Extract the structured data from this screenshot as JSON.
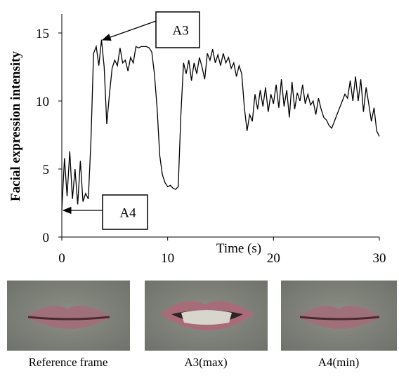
{
  "chart_data": {
    "type": "line",
    "xlabel": "Time (s)",
    "ylabel": "Facial expression intensity",
    "x": [
      0,
      0.25,
      0.5,
      0.75,
      1,
      1.25,
      1.5,
      1.75,
      2,
      2.25,
      2.5,
      2.75,
      3,
      3.25,
      3.5,
      3.75,
      4,
      4.25,
      4.5,
      4.75,
      5,
      5.25,
      5.5,
      5.75,
      6,
      6.25,
      6.5,
      6.75,
      7,
      7.25,
      7.5,
      7.75,
      8,
      8.25,
      8.5,
      8.75,
      9,
      9.25,
      9.5,
      9.75,
      10,
      10.25,
      10.5,
      10.75,
      11,
      11.25,
      11.5,
      11.75,
      12,
      12.25,
      12.5,
      12.75,
      13,
      13.25,
      13.5,
      13.75,
      14,
      14.25,
      14.5,
      14.75,
      15,
      15.25,
      15.5,
      15.75,
      16,
      16.25,
      16.5,
      16.75,
      17,
      17.25,
      17.5,
      17.75,
      18,
      18.25,
      18.5,
      18.75,
      19,
      19.25,
      19.5,
      19.75,
      20,
      20.25,
      20.5,
      20.75,
      21,
      21.25,
      21.5,
      21.75,
      22,
      22.25,
      22.5,
      22.75,
      23,
      23.25,
      23.5,
      23.75,
      24,
      24.25,
      24.5,
      24.75,
      25,
      25.25,
      25.5,
      25.75,
      26,
      26.25,
      26.5,
      26.75,
      27,
      27.25,
      27.5,
      27.75,
      28,
      28.25,
      28.5,
      28.75,
      29,
      29.25,
      29.5,
      29.75,
      30
    ],
    "series": [
      {
        "color": "#000000",
        "values": [
          2.0,
          5.8,
          3.0,
          6.3,
          2.8,
          5.0,
          2.4,
          5.6,
          2.6,
          3.2,
          2.8,
          7.0,
          13.5,
          14.0,
          12.6,
          14.5,
          12.5,
          8.3,
          10.5,
          12.4,
          13.0,
          12.6,
          13.9,
          12.8,
          13.0,
          12.2,
          13.2,
          12.8,
          14.0,
          13.9,
          14.0,
          14.0,
          14.0,
          13.9,
          13.6,
          12.0,
          9.5,
          6.0,
          4.6,
          4.0,
          3.7,
          3.8,
          3.6,
          3.5,
          3.7,
          9.0,
          12.8,
          12.0,
          13.0,
          11.5,
          12.8,
          12.0,
          13.2,
          12.5,
          11.6,
          13.5,
          13.0,
          13.8,
          12.8,
          13.4,
          12.6,
          13.5,
          12.8,
          13.2,
          12.4,
          12.8,
          11.8,
          12.6,
          12.0,
          9.5,
          7.8,
          9.0,
          8.5,
          10.5,
          9.4,
          10.8,
          9.6,
          11.0,
          9.2,
          10.5,
          9.8,
          11.2,
          9.5,
          11.6,
          9.6,
          10.8,
          8.8,
          11.4,
          9.4,
          10.6,
          10.0,
          11.2,
          9.8,
          10.5,
          9.7,
          10.0,
          9.0,
          10.2,
          9.4,
          8.8,
          8.6,
          8.2,
          8.0,
          8.5,
          9.0,
          9.5,
          10.0,
          10.5,
          10.2,
          11.5,
          10.0,
          11.8,
          10.0,
          11.6,
          9.2,
          11.0,
          9.8,
          8.5,
          9.5,
          7.8,
          7.4
        ]
      }
    ],
    "xlim": [
      0,
      30
    ],
    "xticks": [
      0,
      10,
      20,
      30
    ],
    "ylim": [
      0,
      15
    ],
    "yticks": [
      0,
      5,
      10,
      15
    ],
    "annotations": [
      "A3",
      "A4"
    ]
  },
  "panels": [
    {
      "caption": "Reference frame"
    },
    {
      "caption": "A3(max)"
    },
    {
      "caption": "A4(min)"
    }
  ]
}
